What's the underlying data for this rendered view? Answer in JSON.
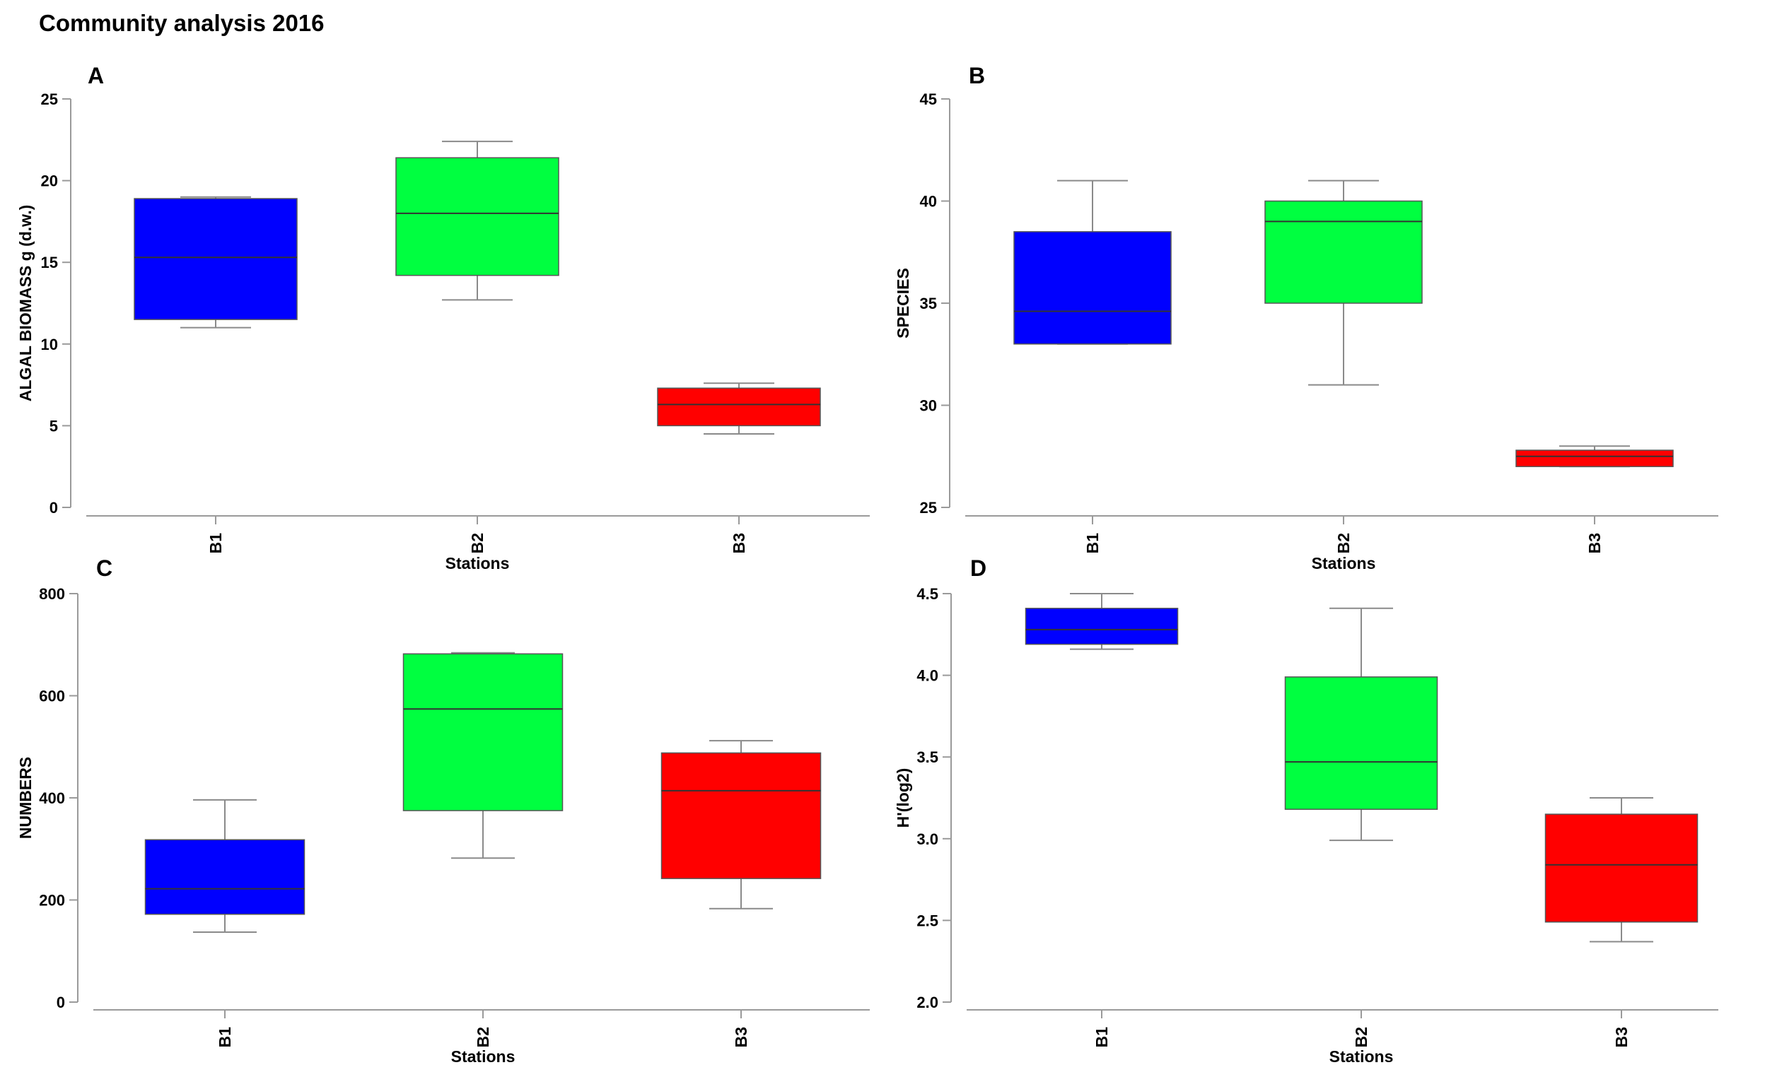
{
  "title": "Community analysis 2016",
  "colors": {
    "B1": "#0000ff",
    "B2": "#00ff40",
    "B3": "#ff0000"
  },
  "chart_data": [
    {
      "panel": "A",
      "type": "box",
      "xlabel": "Stations",
      "ylabel": "ALGAL BIOMASS g (d.w.)",
      "ylim": [
        0,
        25
      ],
      "yticks": [
        "0",
        "5",
        "10",
        "15",
        "20",
        "25"
      ],
      "categories": [
        "B1",
        "B2",
        "B3"
      ],
      "boxes": [
        {
          "category": "B1",
          "min": 11.0,
          "q1": 11.5,
          "median": 15.3,
          "q3": 18.9,
          "max": 19.0
        },
        {
          "category": "B2",
          "min": 12.7,
          "q1": 14.2,
          "median": 18.0,
          "q3": 21.4,
          "max": 22.4
        },
        {
          "category": "B3",
          "min": 4.5,
          "q1": 5.0,
          "median": 6.3,
          "q3": 7.3,
          "max": 7.6
        }
      ]
    },
    {
      "panel": "B",
      "type": "box",
      "xlabel": "Stations",
      "ylabel": "SPECIES",
      "ylim": [
        25,
        45
      ],
      "yticks": [
        "25",
        "30",
        "35",
        "40",
        "45"
      ],
      "categories": [
        "B1",
        "B2",
        "B3"
      ],
      "boxes": [
        {
          "category": "B1",
          "min": 33.0,
          "q1": 33.0,
          "median": 34.6,
          "q3": 38.5,
          "max": 41.0
        },
        {
          "category": "B2",
          "min": 31.0,
          "q1": 35.0,
          "median": 39.0,
          "q3": 40.0,
          "max": 41.0
        },
        {
          "category": "B3",
          "min": 27.0,
          "q1": 27.0,
          "median": 27.5,
          "q3": 27.8,
          "max": 28.0
        }
      ]
    },
    {
      "panel": "C",
      "type": "box",
      "xlabel": "Stations",
      "ylabel": "NUMBERS",
      "ylim": [
        0,
        800
      ],
      "yticks": [
        "0",
        "200",
        "400",
        "600",
        "800"
      ],
      "categories": [
        "B1",
        "B2",
        "B3"
      ],
      "boxes": [
        {
          "category": "B1",
          "min": 137,
          "q1": 172,
          "median": 222,
          "q3": 318,
          "max": 396
        },
        {
          "category": "B2",
          "min": 282,
          "q1": 375,
          "median": 574,
          "q3": 682,
          "max": 684
        },
        {
          "category": "B3",
          "min": 183,
          "q1": 242,
          "median": 414,
          "q3": 488,
          "max": 512
        }
      ]
    },
    {
      "panel": "D",
      "type": "box",
      "xlabel": "Stations",
      "ylabel": "H'(log2)",
      "ylim": [
        2.0,
        4.5
      ],
      "yticks": [
        "2.0",
        "2.5",
        "3.0",
        "3.5",
        "4.0",
        "4.5"
      ],
      "categories": [
        "B1",
        "B2",
        "B3"
      ],
      "boxes": [
        {
          "category": "B1",
          "min": 4.16,
          "q1": 4.19,
          "median": 4.28,
          "q3": 4.41,
          "max": 4.5
        },
        {
          "category": "B2",
          "min": 2.99,
          "q1": 3.18,
          "median": 3.47,
          "q3": 3.99,
          "max": 4.41
        },
        {
          "category": "B3",
          "min": 2.37,
          "q1": 2.49,
          "median": 2.84,
          "q3": 3.15,
          "max": 3.25
        }
      ]
    }
  ]
}
